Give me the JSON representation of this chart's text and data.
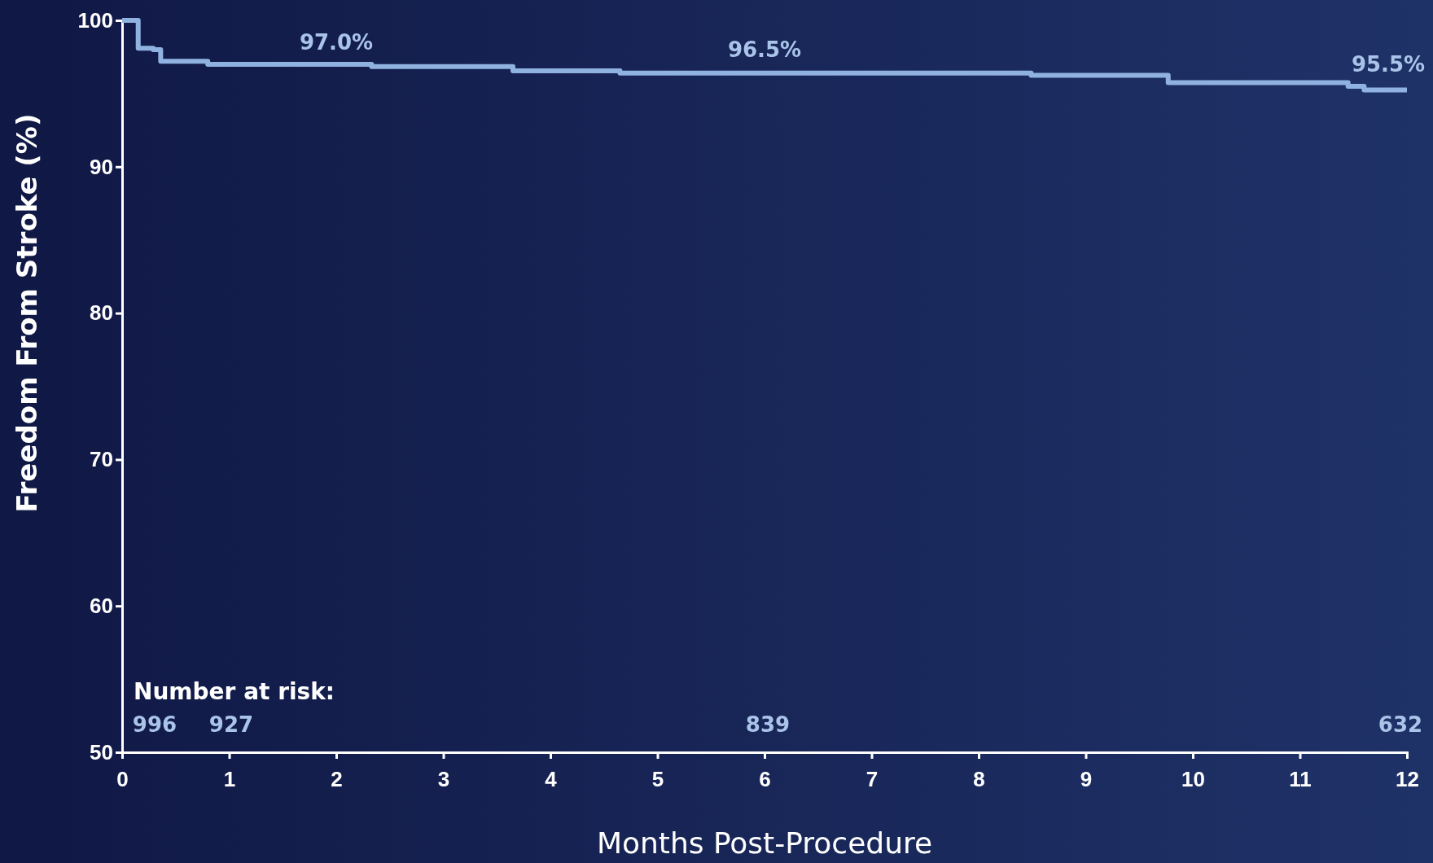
{
  "chart_data": {
    "type": "step",
    "xlabel": "Months Post-Procedure",
    "ylabel": "Freedom From Stroke (%)",
    "x": [
      0,
      0.15,
      0.29,
      0.36,
      0.8,
      2.33,
      3.65,
      4.65,
      8.49,
      9.77,
      11.45,
      11.6,
      12
    ],
    "series": [
      {
        "color": "#8fb2e0",
        "values": [
          100,
          98.1,
          98.0,
          97.2,
          97.0,
          96.85,
          96.55,
          96.4,
          96.25,
          95.75,
          95.5,
          95.25,
          95.25
        ]
      }
    ],
    "xlim": [
      0,
      12
    ],
    "xticks": [
      0,
      1,
      2,
      3,
      4,
      5,
      6,
      7,
      8,
      9,
      10,
      11,
      12
    ],
    "ylim": [
      50,
      100
    ],
    "yticks": [
      50,
      60,
      70,
      80,
      90,
      100
    ],
    "grid": false,
    "marker": "none",
    "line_style": "solid",
    "annotations": [
      {
        "text": "97.0%",
        "x": 2,
        "y": 97.0
      },
      {
        "text": "96.5%",
        "x": 6,
        "y": 96.5
      },
      {
        "text": "95.5%",
        "x": 12,
        "y": 95.5
      },
      "Number at risk:",
      "996",
      "927",
      "839",
      "632"
    ]
  }
}
